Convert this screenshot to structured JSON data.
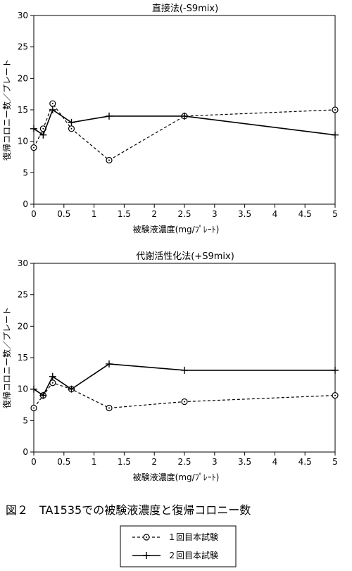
{
  "figure_caption": "図２　TA1535での被験液濃度と復帰コロニー数",
  "legend": {
    "items": [
      {
        "label": "１回目本試験",
        "style": "dashed-circle"
      },
      {
        "label": "２回目本試験",
        "style": "solid-cross"
      }
    ]
  },
  "chart_data": [
    {
      "type": "line",
      "title": "直接法(-S9mix)",
      "xlabel": "被験液濃度(mg/ﾌﾟﾚｰﾄ)",
      "ylabel": "復帰コロニー数／プレート",
      "xlim": [
        0,
        5
      ],
      "ylim": [
        0,
        30
      ],
      "xticks": [
        "0",
        "0.5",
        "1",
        "1.5",
        "2",
        "2.5",
        "3",
        "3.5",
        "4",
        "4.5",
        "5"
      ],
      "yticks": [
        "0",
        "5",
        "10",
        "15",
        "20",
        "25",
        "30"
      ],
      "series": [
        {
          "name": "１回目本試験",
          "x": [
            0,
            0.156,
            0.313,
            0.625,
            1.25,
            2.5,
            5
          ],
          "values": [
            9,
            12,
            16,
            12,
            7,
            14,
            15
          ]
        },
        {
          "name": "２回目本試験",
          "x": [
            0,
            0.156,
            0.313,
            0.625,
            1.25,
            2.5,
            5
          ],
          "values": [
            12,
            11,
            15,
            13,
            14,
            14,
            11
          ]
        }
      ]
    },
    {
      "type": "line",
      "title": "代謝活性化法(+S9mix)",
      "xlabel": "被験液濃度(mg/ﾌﾟﾚｰﾄ)",
      "ylabel": "復帰コロニー数／プレート",
      "xlim": [
        0,
        5
      ],
      "ylim": [
        0,
        30
      ],
      "xticks": [
        "0",
        "0.5",
        "1",
        "1.5",
        "2",
        "2.5",
        "3",
        "3.5",
        "4",
        "4.5",
        "5"
      ],
      "yticks": [
        "0",
        "5",
        "10",
        "15",
        "20",
        "25",
        "30"
      ],
      "series": [
        {
          "name": "１回目本試験",
          "x": [
            0,
            0.156,
            0.313,
            0.625,
            1.25,
            2.5,
            5
          ],
          "values": [
            7,
            9,
            11,
            10,
            7,
            8,
            9
          ]
        },
        {
          "name": "２回目本試験",
          "x": [
            0,
            0.156,
            0.313,
            0.625,
            1.25,
            2.5,
            5
          ],
          "values": [
            10,
            9,
            12,
            10,
            14,
            13,
            13
          ]
        }
      ]
    }
  ]
}
